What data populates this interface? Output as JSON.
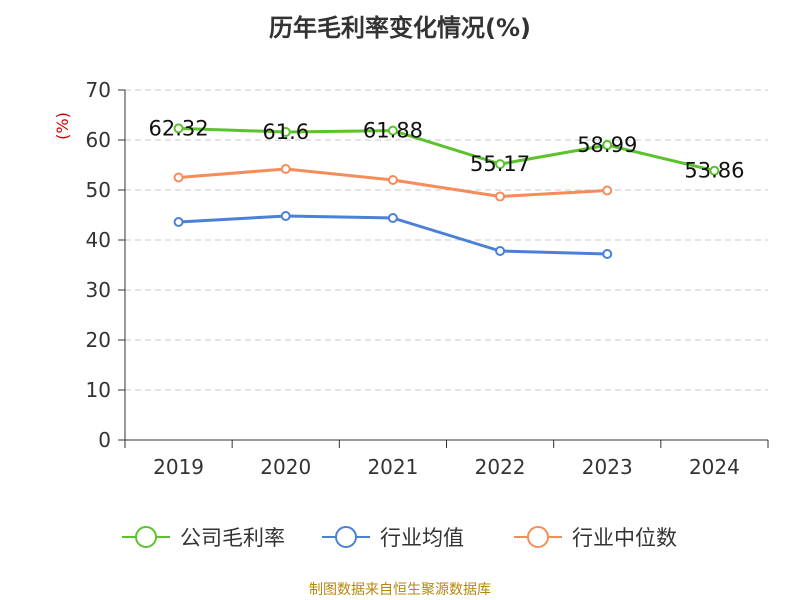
{
  "chart_data": {
    "type": "line",
    "title": "历年毛利率变化情况(%)",
    "ylabel": "(%)",
    "xlabel": "",
    "categories": [
      "2019",
      "2020",
      "2021",
      "2022",
      "2023",
      "2024"
    ],
    "ylim": [
      0,
      70
    ],
    "yticks": [
      0,
      10,
      20,
      30,
      40,
      50,
      60,
      70
    ],
    "grid": true,
    "legend_position": "bottom",
    "series": [
      {
        "name": "公司毛利率",
        "color": "#5cc22e",
        "values": [
          62.32,
          61.6,
          61.88,
          55.17,
          58.99,
          53.86
        ],
        "labels": [
          "62.32",
          "61.6",
          "61.88",
          "55.17",
          "58.99",
          "53.86"
        ],
        "show_labels": true
      },
      {
        "name": "行业均值",
        "color": "#4a80d8",
        "values": [
          43.6,
          44.8,
          44.4,
          37.8,
          37.2,
          null
        ],
        "show_labels": false
      },
      {
        "name": "行业中位数",
        "color": "#f68c5a",
        "values": [
          52.5,
          54.2,
          52.0,
          48.7,
          49.9,
          null
        ],
        "show_labels": false
      }
    ]
  },
  "source_note": "制图数据来自恒生聚源数据库"
}
